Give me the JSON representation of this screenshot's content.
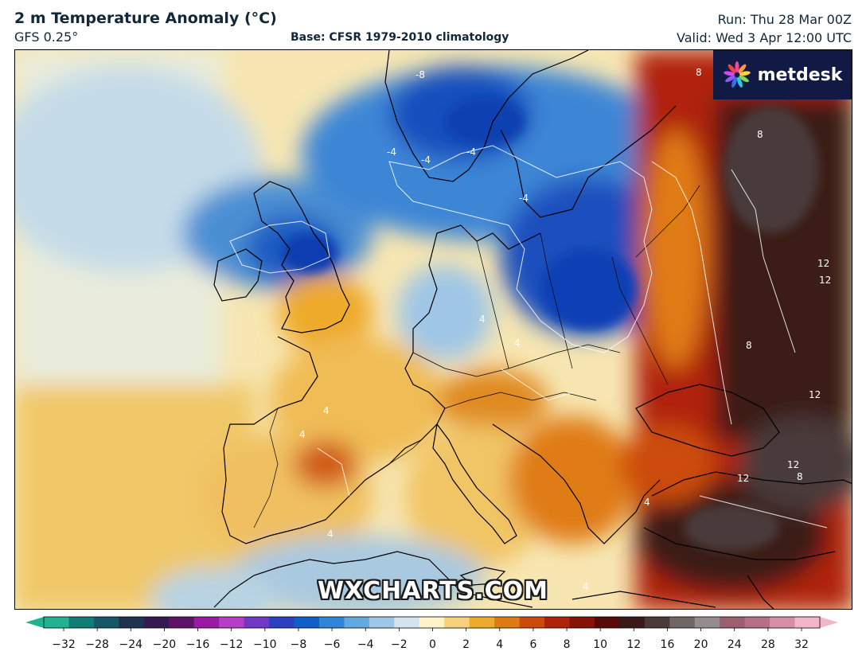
{
  "header": {
    "title": "2 m Temperature Anomaly (°C)",
    "model": "GFS 0.25°",
    "base": "Base: CFSR 1979-2010 climatology",
    "run": "Run: Thu 28 Mar 00Z",
    "valid": "Valid: Wed 3 Apr 12:00 UTC"
  },
  "branding": {
    "logo": "metdesk",
    "logo_icon": "flower-icon",
    "watermark": "WXCHARTS.COM"
  },
  "colorbar": {
    "ticks": [
      "−32",
      "−28",
      "−24",
      "−20",
      "−16",
      "−12",
      "−10",
      "−8",
      "−6",
      "−4",
      "−2",
      "0",
      "2",
      "4",
      "6",
      "8",
      "10",
      "12",
      "16",
      "20",
      "24",
      "28",
      "32"
    ],
    "colors": [
      "#1fb48f",
      "#0f7f76",
      "#175868",
      "#1d3350",
      "#351a52",
      "#5e1466",
      "#9a1aa6",
      "#b73cc8",
      "#6f38c7",
      "#2f3fc2",
      "#0f5fcb",
      "#2f85d8",
      "#64a8e0",
      "#9fc6e6",
      "#d4e4ee",
      "#fff4c8",
      "#f7d27a",
      "#eeaa2b",
      "#e07b14",
      "#cc4b0a",
      "#b0220c",
      "#861208",
      "#5a0a06",
      "#3a1a18",
      "#4a3a3a",
      "#6f6565",
      "#958d8d",
      "#9a6070",
      "#b57088",
      "#d68ea8",
      "#f2b6cc"
    ]
  },
  "contour_labels": [
    "-8",
    "-4",
    "-4",
    "-4",
    "-4",
    "4",
    "4",
    "4",
    "4",
    "4",
    "4",
    "4",
    "8",
    "8",
    "8",
    "8",
    "12",
    "12",
    "12",
    "12",
    "12"
  ]
}
